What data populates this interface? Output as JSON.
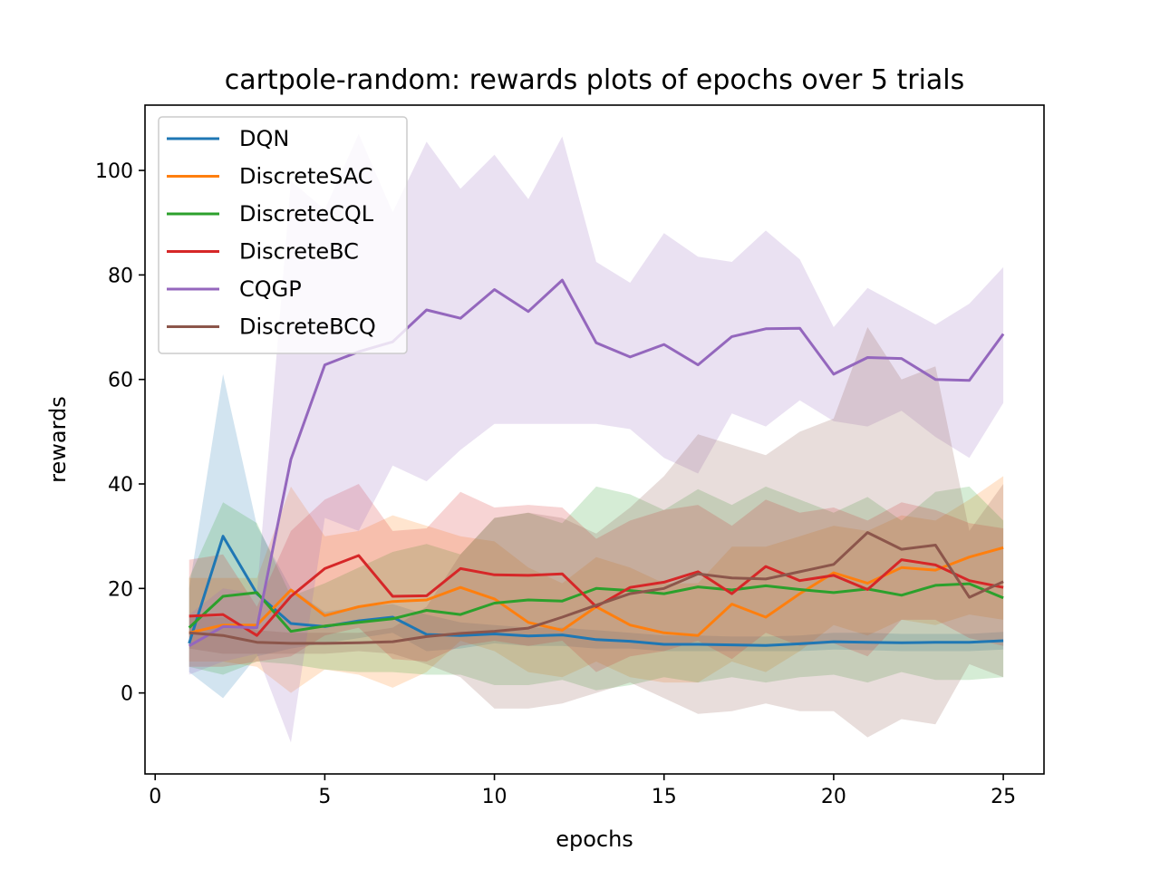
{
  "chart_data": {
    "type": "line",
    "title": "cartpole-random: rewards plots of epochs over 5 trials",
    "xlabel": "epochs",
    "ylabel": "rewards",
    "xlim": [
      -0.3,
      26.2
    ],
    "ylim": [
      -15.5,
      112.5
    ],
    "xticks": [
      0,
      5,
      10,
      15,
      20,
      25
    ],
    "yticks": [
      0,
      20,
      40,
      60,
      80,
      100
    ],
    "legend_position": "top-left",
    "grid": false,
    "x": [
      1,
      2,
      3,
      4,
      5,
      6,
      7,
      8,
      9,
      10,
      11,
      12,
      13,
      14,
      15,
      16,
      17,
      18,
      19,
      20,
      21,
      22,
      23,
      24,
      25
    ],
    "series": [
      {
        "name": "DQN",
        "color": "#1f77b4",
        "mean": [
          9.5,
          30.0,
          19.0,
          13.3,
          12.7,
          13.8,
          14.5,
          11.2,
          11.0,
          11.3,
          10.9,
          11.1,
          10.2,
          9.9,
          9.3,
          9.3,
          9.2,
          9.1,
          9.4,
          9.8,
          9.7,
          9.6,
          9.7,
          9.7,
          10.0
        ],
        "upper": [
          20.0,
          61.0,
          32.0,
          20.0,
          15.5,
          16.5,
          17.0,
          15.0,
          13.5,
          13.0,
          12.5,
          12.5,
          12.0,
          11.5,
          11.0,
          11.0,
          10.8,
          10.8,
          11.0,
          11.5,
          11.5,
          11.3,
          11.3,
          11.3,
          11.7
        ],
        "lower": [
          4.0,
          -1.0,
          7.0,
          8.5,
          9.5,
          10.5,
          11.5,
          8.0,
          8.5,
          9.5,
          9.0,
          9.0,
          8.5,
          8.5,
          8.0,
          8.0,
          8.0,
          8.0,
          8.0,
          8.3,
          8.2,
          8.0,
          8.0,
          8.0,
          8.3
        ]
      },
      {
        "name": "DiscreteSAC",
        "color": "#ff7f0e",
        "mean": [
          11.5,
          13.0,
          13.0,
          19.7,
          14.8,
          16.5,
          17.5,
          17.8,
          20.2,
          18.0,
          13.5,
          12.0,
          16.5,
          13.0,
          11.5,
          11.0,
          17.0,
          14.5,
          19.0,
          23.0,
          21.0,
          24.0,
          23.5,
          26.0,
          27.8
        ],
        "upper": [
          22.0,
          22.0,
          22.0,
          39.5,
          30.0,
          31.0,
          34.0,
          32.0,
          30.0,
          29.0,
          24.0,
          21.0,
          26.0,
          24.0,
          21.0,
          21.0,
          28.0,
          28.0,
          30.0,
          32.0,
          31.0,
          34.0,
          33.0,
          37.0,
          41.5
        ],
        "lower": [
          6.0,
          6.0,
          5.0,
          0.0,
          4.5,
          3.5,
          1.0,
          4.0,
          10.0,
          8.0,
          4.0,
          3.0,
          6.0,
          3.0,
          2.0,
          2.0,
          6.0,
          4.0,
          8.0,
          13.0,
          11.0,
          14.0,
          13.0,
          15.0,
          14.0
        ]
      },
      {
        "name": "DiscreteCQL",
        "color": "#2ca02c",
        "mean": [
          12.5,
          18.5,
          19.2,
          11.8,
          12.8,
          13.5,
          14.2,
          15.8,
          15.0,
          17.2,
          17.8,
          17.6,
          20.0,
          19.6,
          19.0,
          20.3,
          19.7,
          20.5,
          19.8,
          19.2,
          19.9,
          18.7,
          20.6,
          20.9,
          18.2
        ],
        "upper": [
          22.0,
          36.5,
          32.5,
          18.5,
          21.0,
          24.0,
          27.0,
          28.5,
          26.5,
          33.5,
          34.5,
          32.5,
          39.5,
          38.0,
          35.0,
          39.0,
          36.0,
          39.5,
          37.0,
          34.5,
          37.5,
          33.0,
          38.5,
          39.5,
          33.0
        ],
        "lower": [
          5.0,
          3.5,
          6.0,
          5.5,
          4.5,
          4.0,
          4.0,
          3.5,
          3.5,
          1.5,
          1.5,
          2.5,
          0.5,
          1.5,
          3.0,
          2.0,
          3.0,
          2.0,
          3.0,
          3.5,
          2.0,
          4.0,
          2.5,
          2.5,
          3.0
        ]
      },
      {
        "name": "DiscreteBC",
        "color": "#d62728",
        "mean": [
          14.7,
          15.0,
          11.0,
          18.5,
          23.8,
          26.3,
          18.5,
          18.6,
          23.8,
          22.6,
          22.5,
          22.8,
          16.5,
          20.2,
          21.2,
          23.2,
          19.0,
          24.2,
          21.5,
          22.5,
          19.8,
          25.5,
          24.5,
          21.5,
          20.2
        ],
        "upper": [
          25.5,
          26.5,
          16.5,
          31.0,
          37.0,
          40.0,
          31.0,
          31.5,
          38.5,
          35.5,
          36.0,
          35.5,
          29.5,
          33.0,
          35.0,
          36.0,
          32.0,
          37.0,
          34.5,
          35.5,
          33.0,
          36.5,
          35.0,
          32.5,
          31.5
        ],
        "lower": [
          5.0,
          5.0,
          6.0,
          7.0,
          11.0,
          12.5,
          6.5,
          6.0,
          9.0,
          10.0,
          9.0,
          10.0,
          4.0,
          7.0,
          8.0,
          10.0,
          6.5,
          11.5,
          9.0,
          9.5,
          7.0,
          14.0,
          14.0,
          10.5,
          9.0
        ]
      },
      {
        "name": "CQGP",
        "color": "#9467bd",
        "mean": [
          9.0,
          12.7,
          12.5,
          44.7,
          62.8,
          65.3,
          67.2,
          73.3,
          71.7,
          77.2,
          73.0,
          79.0,
          67.0,
          64.3,
          66.7,
          62.8,
          68.2,
          69.7,
          69.8,
          61.0,
          64.2,
          64.0,
          60.0,
          59.8,
          68.7
        ],
        "upper": [
          15.0,
          20.0,
          19.0,
          98.0,
          92.5,
          107.0,
          92.0,
          105.5,
          96.5,
          103.0,
          94.5,
          106.5,
          82.5,
          78.5,
          88.0,
          83.5,
          82.5,
          88.5,
          83.0,
          70.0,
          77.5,
          74.0,
          70.5,
          74.5,
          81.5
        ],
        "lower": [
          3.5,
          6.0,
          7.5,
          -9.5,
          33.5,
          31.0,
          43.5,
          40.5,
          46.5,
          51.5,
          51.5,
          51.5,
          51.5,
          50.5,
          45.0,
          42.0,
          53.5,
          51.0,
          56.0,
          52.0,
          51.0,
          54.0,
          49.0,
          45.0,
          55.5
        ]
      },
      {
        "name": "DiscreteBCQ",
        "color": "#8c564b",
        "mean": [
          11.5,
          11.0,
          9.7,
          9.5,
          9.5,
          9.6,
          9.8,
          10.8,
          11.4,
          11.8,
          12.4,
          14.5,
          16.8,
          19.0,
          20.0,
          22.8,
          22.0,
          21.8,
          23.2,
          24.6,
          30.7,
          27.5,
          28.3,
          18.3,
          21.3
        ],
        "upper": [
          14.5,
          14.5,
          12.0,
          11.5,
          11.5,
          11.5,
          12.5,
          16.5,
          26.5,
          33.5,
          34.5,
          33.5,
          30.5,
          35.5,
          41.5,
          49.5,
          47.5,
          45.5,
          50.0,
          52.5,
          70.0,
          60.0,
          62.5,
          31.0,
          40.0
        ],
        "lower": [
          8.5,
          7.5,
          7.5,
          7.5,
          7.5,
          8.0,
          7.5,
          5.5,
          3.0,
          -3.0,
          -3.0,
          -2.0,
          0.0,
          2.0,
          -1.0,
          -4.0,
          -3.5,
          -2.0,
          -3.5,
          -3.5,
          -8.5,
          -5.0,
          -6.0,
          5.5,
          3.0
        ]
      }
    ]
  }
}
